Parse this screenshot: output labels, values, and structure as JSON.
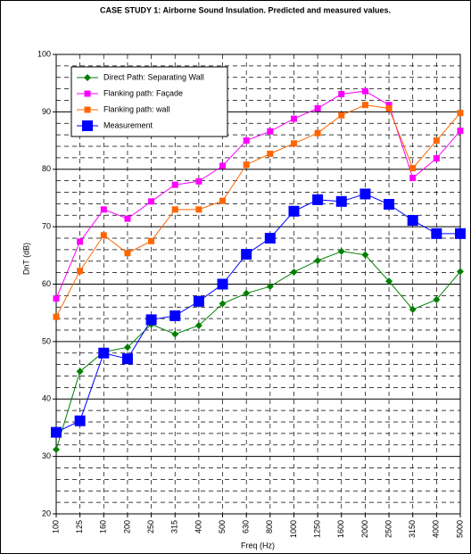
{
  "chart_data": {
    "type": "line",
    "title": "CASE STUDY 1: Airborne Sound Insulation. Predicted and measured values.",
    "x_label": "Freq  (Hz)",
    "y_label": "DnT (dB)",
    "categories": [
      "100",
      "125",
      "160",
      "200",
      "250",
      "315",
      "400",
      "500",
      "630",
      "800",
      "1000",
      "1250",
      "1600",
      "2000",
      "2500",
      "3150",
      "4000",
      "5000"
    ],
    "series": [
      {
        "name": "Direct Path: Separating Wall",
        "color": "#008000",
        "marker": "diamond",
        "values": [
          31.2,
          44.8,
          48.2,
          49,
          53,
          51.3,
          52.8,
          56.6,
          58.4,
          59.6,
          62.1,
          64.1,
          65.7,
          65.1,
          60.5,
          55.6,
          57.3,
          62.2
        ]
      },
      {
        "name": "Flanking path: Façade",
        "color": "#ff00ff",
        "marker": "square",
        "values": [
          57.5,
          67.4,
          73,
          71.4,
          74.4,
          77.3,
          77.9,
          80.6,
          85,
          86.6,
          88.8,
          90.6,
          93.1,
          93.6,
          91.2,
          78.5,
          81.9,
          86.7
        ]
      },
      {
        "name": "Flanking path: wall",
        "color": "#ff6600",
        "marker": "square",
        "values": [
          54.3,
          62.3,
          68.5,
          65.4,
          67.5,
          73,
          73,
          74.5,
          80.8,
          82.7,
          84.5,
          86.3,
          89.4,
          91.2,
          90.6,
          80.2,
          85,
          89.8
        ]
      },
      {
        "name": "Measurement",
        "color": "#0000ff",
        "marker": "bigsquare",
        "values": [
          34.2,
          36.2,
          48,
          47,
          53.8,
          54.5,
          57,
          60,
          65.2,
          68,
          72.7,
          74.7,
          74.4,
          75.7,
          73.9,
          71.1,
          68.8,
          68.8
        ]
      }
    ],
    "ylim": [
      20,
      100
    ],
    "yticks": [
      20,
      30,
      40,
      50,
      60,
      70,
      80,
      90,
      100
    ],
    "yminorticks": [
      22,
      24,
      26,
      28,
      32,
      34,
      36,
      38,
      42,
      44,
      46,
      48,
      52,
      54,
      56,
      58,
      62,
      64,
      66,
      68,
      72,
      74,
      76,
      78,
      82,
      84,
      86,
      88,
      92,
      94,
      96,
      98
    ],
    "grid": true,
    "legend": "top-left"
  }
}
